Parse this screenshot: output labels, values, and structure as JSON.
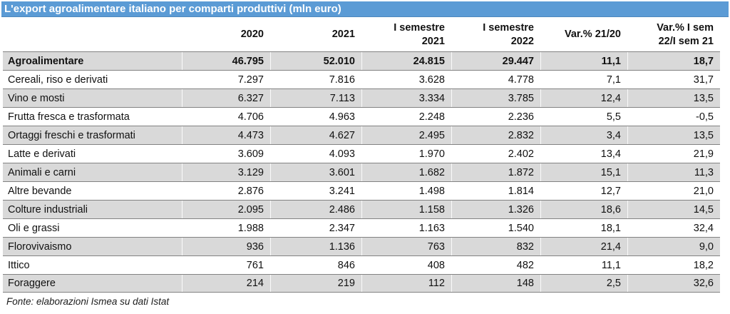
{
  "title": "L'export agroalimentare italiano per comparti produttivi (mln euro)",
  "accent_color": "#5b9bd5",
  "row_shade_color": "#d9d9d9",
  "footer": {
    "text": "Fonte: elaborazioni Ismea su dati Istat"
  },
  "table": {
    "columns": [
      "",
      "2020",
      "2021",
      "I semestre\n2021",
      "I semestre\n2022",
      "Var.% 21/20",
      "Var.% I sem\n22/I sem 21"
    ],
    "rows": [
      {
        "label": "Agroalimentare",
        "is_total": true,
        "values": [
          "46.795",
          "52.010",
          "24.815",
          "29.447",
          "11,1",
          "18,7"
        ]
      },
      {
        "label": "Cereali, riso e derivati",
        "values": [
          "7.297",
          "7.816",
          "3.628",
          "4.778",
          "7,1",
          "31,7"
        ]
      },
      {
        "label": "Vino e mosti",
        "values": [
          "6.327",
          "7.113",
          "3.334",
          "3.785",
          "12,4",
          "13,5"
        ]
      },
      {
        "label": "Frutta fresca e trasformata",
        "values": [
          "4.706",
          "4.963",
          "2.248",
          "2.236",
          "5,5",
          "-0,5"
        ]
      },
      {
        "label": "Ortaggi freschi e trasformati",
        "values": [
          "4.473",
          "4.627",
          "2.495",
          "2.832",
          "3,4",
          "13,5"
        ]
      },
      {
        "label": "Latte e derivati",
        "values": [
          "3.609",
          "4.093",
          "1.970",
          "2.402",
          "13,4",
          "21,9"
        ]
      },
      {
        "label": "Animali e carni",
        "values": [
          "3.129",
          "3.601",
          "1.682",
          "1.872",
          "15,1",
          "11,3"
        ]
      },
      {
        "label": "Altre bevande",
        "values": [
          "2.876",
          "3.241",
          "1.498",
          "1.814",
          "12,7",
          "21,0"
        ]
      },
      {
        "label": "Colture industriali",
        "values": [
          "2.095",
          "2.486",
          "1.158",
          "1.326",
          "18,6",
          "14,5"
        ]
      },
      {
        "label": "Oli e grassi",
        "values": [
          "1.988",
          "2.347",
          "1.163",
          "1.540",
          "18,1",
          "32,4"
        ]
      },
      {
        "label": "Florovivaismo",
        "values": [
          "936",
          "1.136",
          "763",
          "832",
          "21,4",
          "9,0"
        ]
      },
      {
        "label": "Ittico",
        "values": [
          "761",
          "846",
          "408",
          "482",
          "11,1",
          "18,2"
        ]
      },
      {
        "label": "Foraggere",
        "values": [
          "214",
          "219",
          "112",
          "148",
          "2,5",
          "32,6"
        ]
      }
    ]
  },
  "chart_data": {
    "type": "table",
    "title": "L'export agroalimentare italiano per comparti produttivi (mln euro)",
    "columns": [
      "2020",
      "2021",
      "I semestre 2021",
      "I semestre 2022",
      "Var.% 21/20",
      "Var.% I sem 22/I sem 21"
    ],
    "categories": [
      "Agroalimentare",
      "Cereali, riso e derivati",
      "Vino e mosti",
      "Frutta fresca e trasformata",
      "Ortaggi freschi e trasformati",
      "Latte e derivati",
      "Animali e carni",
      "Altre bevande",
      "Colture industriali",
      "Oli e grassi",
      "Florovivaismo",
      "Ittico",
      "Foraggere"
    ],
    "series": [
      {
        "name": "2020",
        "values": [
          46795,
          7297,
          6327,
          4706,
          4473,
          3609,
          3129,
          2876,
          2095,
          1988,
          936,
          761,
          214
        ]
      },
      {
        "name": "2021",
        "values": [
          52010,
          7816,
          7113,
          4963,
          4627,
          4093,
          3601,
          3241,
          2486,
          2347,
          1136,
          846,
          219
        ]
      },
      {
        "name": "I semestre 2021",
        "values": [
          24815,
          3628,
          3334,
          2248,
          2495,
          1970,
          1682,
          1498,
          1158,
          1163,
          763,
          408,
          112
        ]
      },
      {
        "name": "I semestre 2022",
        "values": [
          29447,
          4778,
          3785,
          2236,
          2832,
          2402,
          1872,
          1814,
          1326,
          1540,
          832,
          482,
          148
        ]
      },
      {
        "name": "Var.% 21/20",
        "values": [
          11.1,
          7.1,
          12.4,
          5.5,
          3.4,
          13.4,
          15.1,
          12.7,
          18.6,
          18.1,
          21.4,
          11.1,
          2.5
        ]
      },
      {
        "name": "Var.% I sem 22/I sem 21",
        "values": [
          18.7,
          31.7,
          13.5,
          -0.5,
          13.5,
          21.9,
          11.3,
          21.0,
          14.5,
          32.4,
          9.0,
          18.2,
          32.6
        ]
      }
    ],
    "source_note": "Fonte: elaborazioni Ismea su dati Istat"
  }
}
